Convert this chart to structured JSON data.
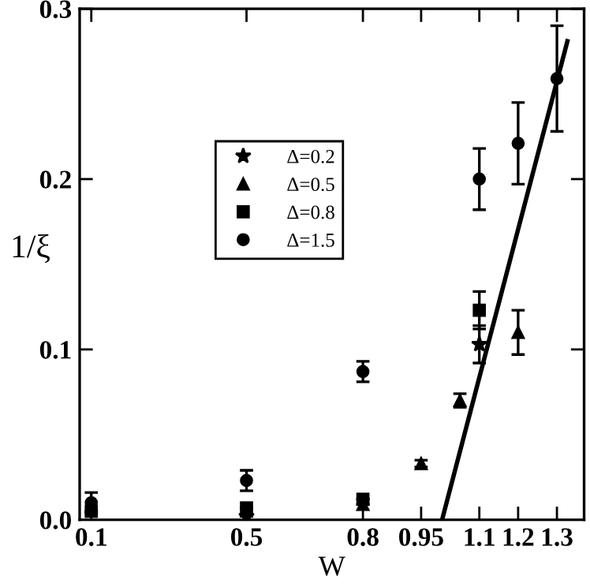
{
  "chart_data": {
    "type": "scatter",
    "xlabel": "W",
    "ylabel": "1/ξ",
    "xlim": [
      0.07,
      1.37
    ],
    "ylim": [
      0,
      0.3
    ],
    "xticks": [
      0.1,
      0.5,
      0.8,
      0.95,
      1.1,
      1.2,
      1.3
    ],
    "yticks": [
      {
        "value": 0,
        "label": "0.0"
      },
      0.1,
      0.2,
      0.3
    ],
    "grid": false,
    "legend": "top left",
    "series": [
      {
        "name": "Δ=0.2",
        "color": "#000000",
        "marker": "star",
        "x": [
          0.5,
          1.1
        ],
        "values": [
          0.002,
          0.103
        ],
        "errors": [
          null,
          0.011
        ]
      },
      {
        "name": "Δ=0.5",
        "color": "#000000",
        "marker": "triangle",
        "x": [
          0.8,
          0.95,
          1.05,
          1.2
        ],
        "values": [
          0.009,
          0.033,
          0.07,
          0.11
        ],
        "errors": [
          null,
          0.002,
          0.004,
          0.013
        ]
      },
      {
        "name": "Δ=0.8",
        "color": "#000000",
        "marker": "square",
        "x": [
          0.1,
          0.5,
          0.8,
          1.1
        ],
        "values": [
          0.005,
          0.007,
          0.012,
          0.123
        ],
        "errors": [
          null,
          null,
          null,
          0.011
        ]
      },
      {
        "name": "Δ=1.5",
        "color": "#000000",
        "marker": "circle",
        "x": [
          0.1,
          0.5,
          0.8,
          1.1,
          1.2,
          1.3
        ],
        "values": [
          0.01,
          0.023,
          0.087,
          0.2,
          0.221,
          0.259
        ],
        "errors": [
          0.006,
          0.006,
          0.006,
          0.018,
          0.024,
          0.031
        ]
      },
      {
        "type": "line",
        "color": "#000000",
        "x": [
          1.004,
          1.327
        ],
        "values": [
          0,
          0.281
        ]
      }
    ]
  }
}
